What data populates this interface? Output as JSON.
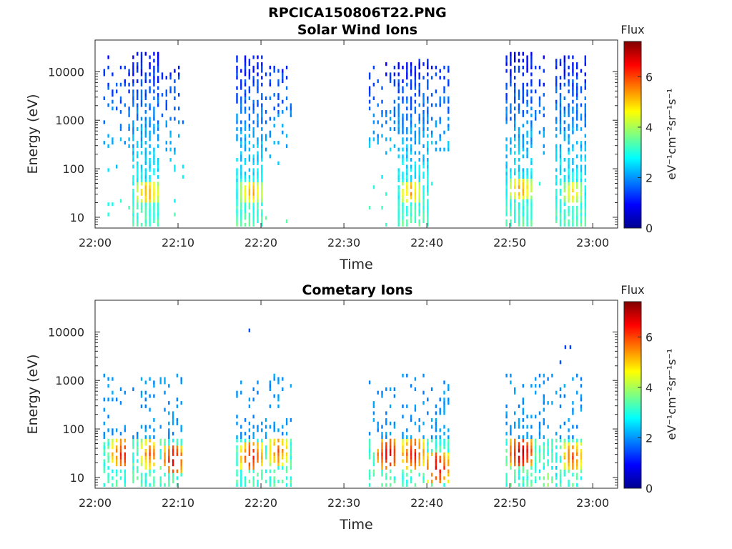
{
  "figure_title": "RPCICA150806T22.PNG",
  "chart_data": [
    {
      "type": "heatmap",
      "title": "Solar Wind Ions",
      "xlabel": "Time",
      "ylabel": "Energy (eV)",
      "x_ticks": [
        "22:00",
        "22:10",
        "22:20",
        "22:30",
        "22:40",
        "22:50",
        "23:00"
      ],
      "x_range_minutes": [
        0,
        63
      ],
      "y_scale": "log",
      "y_ticks": [
        10,
        100,
        1000,
        10000
      ],
      "y_tick_labels": [
        "10",
        "100",
        "1000",
        "10000"
      ],
      "y_range_eV": [
        6,
        45000
      ],
      "colorbar": {
        "title": "Flux",
        "unit_label": "eV⁻¹cm⁻²sr⁻¹s⁻¹",
        "range": [
          0,
          7.4
        ],
        "ticks": [
          0,
          2,
          4,
          6
        ],
        "colormap": "jet"
      },
      "bursts": [
        {
          "t_start_min": 1.0,
          "t_end_min": 10.5,
          "core_start_min": 4.2,
          "core_end_min": 7.5,
          "hot_min": 6.3,
          "hot_energy_eV": 30,
          "low_energy_eV": 6,
          "high_energy_eV": 25000,
          "peak_flux": 5.6
        },
        {
          "t_start_min": 17.0,
          "t_end_min": 23.5,
          "core_start_min": 17.0,
          "core_end_min": 20.0,
          "hot_min": 18.8,
          "hot_energy_eV": 30,
          "low_energy_eV": 6,
          "high_energy_eV": 20000,
          "peak_flux": 5.4
        },
        {
          "t_start_min": 33.0,
          "t_end_min": 42.5,
          "core_start_min": 36.5,
          "core_end_min": 40.0,
          "hot_min": 38.0,
          "hot_energy_eV": 30,
          "low_energy_eV": 6,
          "high_energy_eV": 17000,
          "peak_flux": 5.4
        },
        {
          "t_start_min": 49.5,
          "t_end_min": 54.0,
          "core_start_min": 49.5,
          "core_end_min": 52.5,
          "hot_min": 51.2,
          "hot_energy_eV": 35,
          "low_energy_eV": 6,
          "high_energy_eV": 25000,
          "peak_flux": 5.5
        },
        {
          "t_start_min": 55.5,
          "t_end_min": 59.0,
          "core_start_min": 55.5,
          "core_end_min": 59.0,
          "hot_min": 57.5,
          "hot_energy_eV": 30,
          "low_energy_eV": 6,
          "high_energy_eV": 20000,
          "peak_flux": 5.0
        }
      ]
    },
    {
      "type": "heatmap",
      "title": "Cometary Ions",
      "xlabel": "Time",
      "ylabel": "Energy (eV)",
      "x_ticks": [
        "22:00",
        "22:10",
        "22:20",
        "22:30",
        "22:40",
        "22:50",
        "23:00"
      ],
      "x_range_minutes": [
        0,
        63
      ],
      "y_scale": "log",
      "y_ticks": [
        10,
        100,
        1000,
        10000
      ],
      "y_tick_labels": [
        "10",
        "100",
        "1000",
        "10000"
      ],
      "y_range_eV": [
        6,
        45000
      ],
      "colorbar": {
        "title": "Flux",
        "unit_label": "eV⁻¹cm⁻²sr⁻¹s⁻¹",
        "range": [
          0,
          7.4
        ],
        "ticks": [
          0,
          2,
          4,
          6
        ],
        "colormap": "jet"
      },
      "bursts": [
        {
          "t_start_min": 1.0,
          "t_end_min": 3.5,
          "hot_min": 3.3,
          "hot_energy_eV": 28,
          "peak_flux": 6.6
        },
        {
          "t_start_min": 4.5,
          "t_end_min": 7.0,
          "hot_min": 6.6,
          "hot_energy_eV": 28,
          "peak_flux": 6.0
        },
        {
          "t_start_min": 7.8,
          "t_end_min": 10.5,
          "hot_min": 9.4,
          "hot_energy_eV": 22,
          "peak_flux": 6.8
        },
        {
          "t_start_min": 17.0,
          "t_end_min": 20.0,
          "hot_min": 18.8,
          "hot_energy_eV": 25,
          "peak_flux": 6.6
        },
        {
          "t_start_min": 20.5,
          "t_end_min": 23.5,
          "hot_min": 22.0,
          "hot_energy_eV": 32,
          "peak_flux": 6.0
        },
        {
          "t_start_min": 33.0,
          "t_end_min": 36.0,
          "hot_min": 35.3,
          "hot_energy_eV": 28,
          "peak_flux": 6.9
        },
        {
          "t_start_min": 37.0,
          "t_end_min": 39.5,
          "hot_min": 38.3,
          "hot_energy_eV": 28,
          "peak_flux": 6.6
        },
        {
          "t_start_min": 40.0,
          "t_end_min": 42.5,
          "hot_min": 41.2,
          "hot_energy_eV": 15,
          "peak_flux": 6.9
        },
        {
          "t_start_min": 49.5,
          "t_end_min": 52.5,
          "hot_min": 51.3,
          "hot_energy_eV": 30,
          "peak_flux": 7.2
        },
        {
          "t_start_min": 53.0,
          "t_end_min": 55.5,
          "hot_min": 54.5,
          "hot_energy_eV": 8,
          "peak_flux": 4.2
        },
        {
          "t_start_min": 56.0,
          "t_end_min": 58.5,
          "hot_min": 57.5,
          "hot_energy_eV": 25,
          "peak_flux": 6.2
        }
      ],
      "isolated_points": [
        {
          "t_min": 18.5,
          "energy_eV": 10000,
          "flux": 1.5
        },
        {
          "t_min": 56.0,
          "energy_eV": 2200,
          "flux": 1.5
        },
        {
          "t_min": 56.6,
          "energy_eV": 4500,
          "flux": 1.4
        },
        {
          "t_min": 57.2,
          "energy_eV": 4500,
          "flux": 1.4
        }
      ]
    }
  ]
}
